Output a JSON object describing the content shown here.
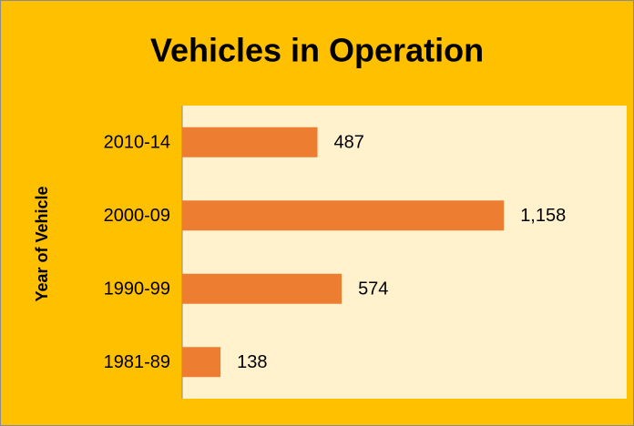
{
  "chart_data": {
    "type": "hbar",
    "title": "Vehicles in Operation",
    "y_label": "Year of Vehicle",
    "categories": [
      "2010-14",
      "2000-09",
      "1990-99",
      "1981-89"
    ],
    "values": [
      487,
      1158,
      574,
      138
    ],
    "value_labels": [
      "487",
      "1,158",
      "574",
      "138"
    ],
    "color": "#ED7D31",
    "xlim": [
      0,
      1600
    ]
  }
}
